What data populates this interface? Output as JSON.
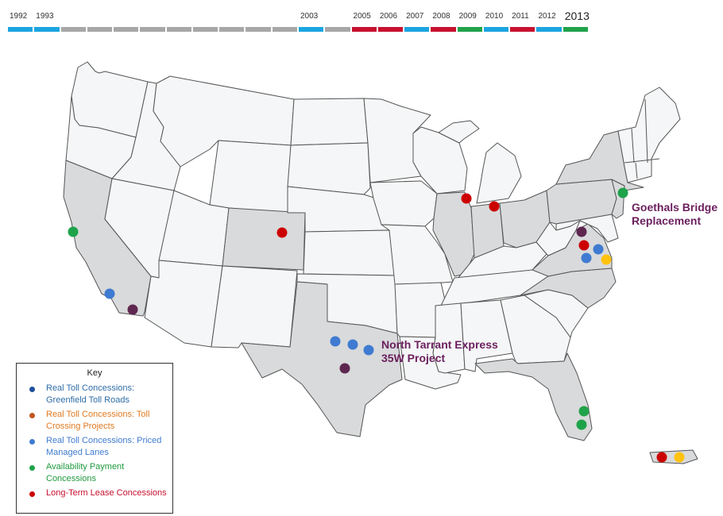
{
  "timeline": {
    "years": [
      {
        "label": "1992",
        "color": "#1ba5e0",
        "big": false
      },
      {
        "label": "1993",
        "color": "#1ba5e0",
        "big": false
      },
      {
        "label": "",
        "color": "#a7a7a7",
        "big": false
      },
      {
        "label": "",
        "color": "#a7a7a7",
        "big": false
      },
      {
        "label": "",
        "color": "#a7a7a7",
        "big": false
      },
      {
        "label": "",
        "color": "#a7a7a7",
        "big": false
      },
      {
        "label": "",
        "color": "#a7a7a7",
        "big": false
      },
      {
        "label": "",
        "color": "#a7a7a7",
        "big": false
      },
      {
        "label": "",
        "color": "#a7a7a7",
        "big": false
      },
      {
        "label": "",
        "color": "#a7a7a7",
        "big": false
      },
      {
        "label": "",
        "color": "#a7a7a7",
        "big": false
      },
      {
        "label": "2003",
        "color": "#1ba5e0",
        "big": false
      },
      {
        "label": "",
        "color": "#a7a7a7",
        "big": false
      },
      {
        "label": "2005",
        "color": "#c8102e",
        "big": false
      },
      {
        "label": "2006",
        "color": "#c8102e",
        "big": false
      },
      {
        "label": "2007",
        "color": "#1ba5e0",
        "big": false
      },
      {
        "label": "2008",
        "color": "#c8102e",
        "big": false
      },
      {
        "label": "2009",
        "color": "#1fa34a",
        "big": false
      },
      {
        "label": "2010",
        "color": "#1ba5e0",
        "big": false
      },
      {
        "label": "2011",
        "color": "#c8102e",
        "big": false
      },
      {
        "label": "2012",
        "color": "#1ba5e0",
        "big": false
      },
      {
        "label": "2013",
        "color": "#1fa34a",
        "big": true
      }
    ]
  },
  "map": {
    "shaded_states": [
      "California",
      "Colorado",
      "Texas",
      "Illinois",
      "Indiana",
      "Ohio",
      "Pennsylvania",
      "New York",
      "New Jersey",
      "Virginia",
      "North Carolina",
      "Florida",
      "Puerto Rico"
    ],
    "colors": {
      "land": "#f5f6f7",
      "shaded": "#d9dadb",
      "border": "#555555"
    }
  },
  "projects": [
    {
      "category": "availability",
      "color": "#1fa34a",
      "location": "Northern California"
    },
    {
      "category": "priced_managed",
      "color": "#3f7bd1",
      "location": "Los Angeles"
    },
    {
      "category": "featured",
      "color": "#5e2750",
      "location": "Southern California"
    },
    {
      "category": "long_term_lease",
      "color": "#cc0000",
      "location": "Colorado"
    },
    {
      "category": "priced_managed",
      "color": "#3f7bd1",
      "location": "Dallas-Fort Worth 1"
    },
    {
      "category": "priced_managed",
      "color": "#3f7bd1",
      "location": "Dallas-Fort Worth 2"
    },
    {
      "category": "priced_managed",
      "color": "#3f7bd1",
      "location": "Dallas-Fort Worth 3"
    },
    {
      "category": "featured",
      "color": "#5e2750",
      "location": "Central Texas"
    },
    {
      "category": "long_term_lease",
      "color": "#cc0000",
      "location": "Chicago"
    },
    {
      "category": "long_term_lease",
      "color": "#cc0000",
      "location": "Indiana"
    },
    {
      "category": "availability",
      "color": "#1fa34a",
      "location": "New York / New Jersey"
    },
    {
      "category": "featured",
      "color": "#5e2750",
      "location": "Northern Virginia"
    },
    {
      "category": "long_term_lease",
      "color": "#cc0000",
      "location": "Virginia 1"
    },
    {
      "category": "priced_managed",
      "color": "#3f7bd1",
      "location": "Virginia 2"
    },
    {
      "category": "priced_managed",
      "color": "#3f7bd1",
      "location": "Virginia 3"
    },
    {
      "category": "toll_crossing",
      "color": "#ffc20e",
      "location": "Virginia 4"
    },
    {
      "category": "availability",
      "color": "#1fa34a",
      "location": "South Florida 1"
    },
    {
      "category": "availability",
      "color": "#1fa34a",
      "location": "South Florida 2"
    },
    {
      "category": "long_term_lease",
      "color": "#cc0000",
      "location": "Puerto Rico 1"
    },
    {
      "category": "toll_crossing",
      "color": "#ffc20e",
      "location": "Puerto Rico 2"
    }
  ],
  "callouts": {
    "goethals": "Goethals Bridge Replacement",
    "tarrant": "North Tarrant Express 35W Project"
  },
  "key": {
    "title": "Key",
    "items": [
      {
        "label": "Real Toll Concessions: Greenfield Toll Roads",
        "dot_color": "#1f4f9c",
        "text_color": "#2f6ea8"
      },
      {
        "label": "Real Toll Concessions: Toll Crossing Projects",
        "dot_color": "#c0561f",
        "text_color": "#e07b22"
      },
      {
        "label": "Real Toll Concessions: Priced Managed Lanes",
        "dot_color": "#3f7bd1",
        "text_color": "#3f7bd1"
      },
      {
        "label": "Availability Payment Concessions",
        "dot_color": "#1fa34a",
        "text_color": "#1f9a3e"
      },
      {
        "label": "Long-Term Lease Concessions",
        "dot_color": "#cc0000",
        "text_color": "#c8102e"
      }
    ]
  }
}
